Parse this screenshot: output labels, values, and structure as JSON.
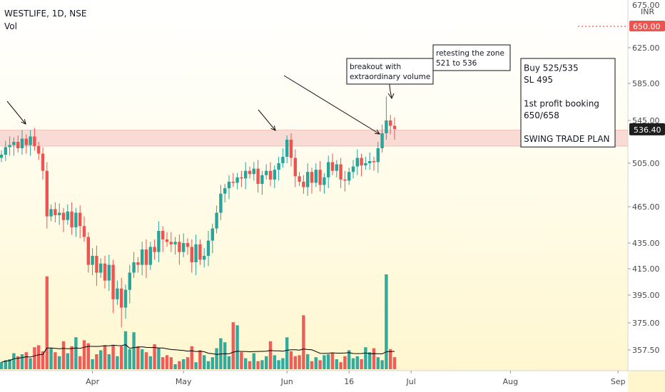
{
  "header": {
    "title": "WESTLIFE, 1D, NSE",
    "volume_label": "Vol"
  },
  "axis": {
    "currency": "INR",
    "price_badge": "536.40",
    "target_badge": "650.00"
  },
  "annotations": {
    "breakout": [
      "breakout with",
      "extraordinary volume"
    ],
    "retest": [
      "retesting the zone",
      "521 to 536"
    ],
    "plan": [
      "Buy 525/535",
      "SL 495",
      "",
      "1st profit booking",
      "650/658",
      "",
      "SWING TRADE PLAN"
    ]
  },
  "colors": {
    "up": "#26a69a",
    "down": "#ef5350",
    "zone": "#f6d5cf",
    "badge": "#ef5350",
    "ma": "#000000"
  },
  "chart_data": {
    "type": "candlestick",
    "title": "WESTLIFE, 1D, NSE",
    "y_ticks": [
      675.0,
      625.0,
      585.0,
      545.0,
      505.0,
      465.0,
      435.0,
      415.0,
      395.0,
      375.0,
      357.5
    ],
    "x_ticks": [
      {
        "label": "Apr",
        "index": 22
      },
      {
        "label": "May",
        "index": 44
      },
      {
        "label": "Jun",
        "index": 69
      },
      {
        "label": "16",
        "index": 84
      },
      {
        "label": "Jul",
        "index": 99
      },
      {
        "label": "Aug",
        "index": 123
      },
      {
        "label": "Sep",
        "index": 149
      }
    ],
    "zone": [
      521,
      536
    ],
    "last_price": 536.4,
    "target": 650,
    "closes": [
      513,
      520,
      522,
      525,
      519,
      528,
      522,
      530,
      521,
      514,
      498,
      457,
      463,
      458,
      460,
      454,
      461,
      448,
      460,
      449,
      440,
      418,
      425,
      412,
      419,
      406,
      418,
      392,
      400,
      386,
      399,
      412,
      420,
      418,
      430,
      418,
      432,
      428,
      445,
      438,
      436,
      434,
      436,
      428,
      435,
      432,
      420,
      434,
      422,
      425,
      437,
      447,
      460,
      477,
      482,
      488,
      487,
      492,
      491,
      498,
      495,
      500,
      486,
      494,
      498,
      490,
      499,
      505,
      511,
      527,
      510,
      493,
      488,
      483,
      497,
      487,
      499,
      485,
      492,
      506,
      498,
      504,
      490,
      489,
      497,
      502,
      510,
      503,
      505,
      507,
      506,
      519,
      533,
      545,
      540,
      537
    ],
    "volumes": [
      0.7,
      0.9,
      1.0,
      1.6,
      1.3,
      1.5,
      1.7,
      1.1,
      2.2,
      2.4,
      1.8,
      9.3,
      2.1,
      1.7,
      1.3,
      2.8,
      1.6,
      2.3,
      3.2,
      1.3,
      2.9,
      2.6,
      1.0,
      1.5,
      1.9,
      2.4,
      1.5,
      2.4,
      1.3,
      2.3,
      3.8,
      2.0,
      3.7,
      2.3,
      2.0,
      1.7,
      1.3,
      2.5,
      2.1,
      1.2,
      1.4,
      1.2,
      0.5,
      0.8,
      1.0,
      1.2,
      2.3,
      0.7,
      1.9,
      1.4,
      0.8,
      1.2,
      2.1,
      3.1,
      2.7,
      1.3,
      4.7,
      4.4,
      1.7,
      1.1,
      0.8,
      1.6,
      0.8,
      0.9,
      1.3,
      2.8,
      1.4,
      0.9,
      1.1,
      3.2,
      1.8,
      1.3,
      1.4,
      5.4,
      1.5,
      0.8,
      1.2,
      0.9,
      1.4,
      1.5,
      1.6,
      1.0,
      0.7,
      1.3,
      1.9,
      1.1,
      1.3,
      1.0,
      2.2,
      1.7,
      2.1,
      1.2,
      0.9,
      9.5,
      2.0,
      1.2
    ]
  }
}
